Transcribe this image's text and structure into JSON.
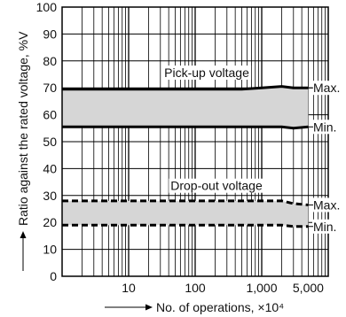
{
  "chart_data": {
    "type": "line",
    "x_scale": "log",
    "xlim": [
      1,
      10000
    ],
    "ylim": [
      0,
      100
    ],
    "grid": true,
    "xlabel": "No. of operations, ×10⁴",
    "ylabel": "Ratio against the rated voltage, %V",
    "xtick_labels": [
      {
        "value": 10,
        "label": "10"
      },
      {
        "value": 100,
        "label": "100"
      },
      {
        "value": 1000,
        "label": "1,000"
      },
      {
        "value": 5000,
        "label": "5,000"
      }
    ],
    "yticks": [
      0,
      10,
      20,
      30,
      40,
      50,
      60,
      70,
      80,
      90,
      100
    ],
    "bands": [
      {
        "name": "Pick-up voltage",
        "style": "solid",
        "max_label": "Max.",
        "min_label": "Min.",
        "x": [
          1,
          10,
          100,
          500,
          1000,
          2000,
          3000,
          5000
        ],
        "max": [
          69.5,
          69.5,
          69.5,
          69.5,
          70,
          70.5,
          70,
          70
        ],
        "min": [
          55.5,
          55.5,
          55.5,
          55.5,
          55.5,
          55.5,
          55,
          55.5
        ]
      },
      {
        "name": "Drop-out voltage",
        "style": "dashed",
        "max_label": "Max.",
        "min_label": "Min.",
        "x": [
          1,
          10,
          100,
          500,
          1000,
          2000,
          3000,
          5000
        ],
        "max": [
          28,
          28,
          28,
          28,
          28,
          28,
          27,
          26.5
        ],
        "min": [
          19,
          19,
          19,
          19,
          19,
          19,
          18.5,
          18.5
        ]
      }
    ]
  }
}
